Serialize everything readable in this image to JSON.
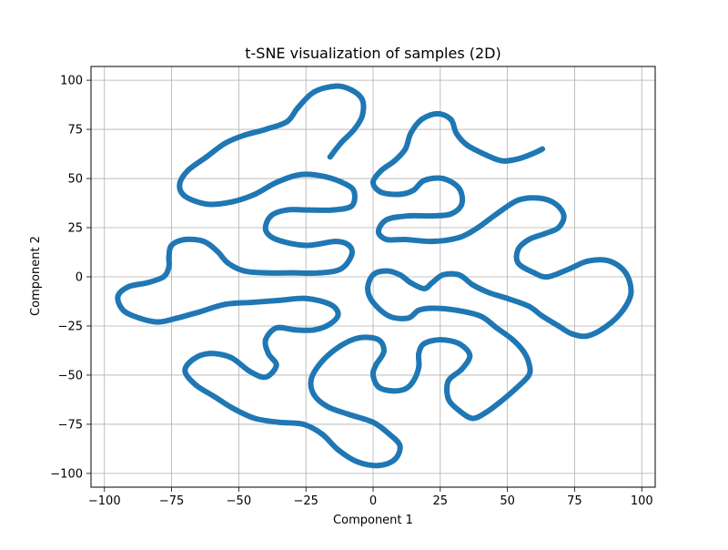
{
  "chart_data": {
    "type": "scatter",
    "title": "t-SNE visualization of samples (2D)",
    "xlabel": "Component 1",
    "ylabel": "Component 2",
    "xlim": [
      -105,
      105
    ],
    "ylim": [
      -107,
      107
    ],
    "xticks": [
      -100,
      -75,
      -50,
      -25,
      0,
      25,
      50,
      75,
      100
    ],
    "yticks": [
      -100,
      -75,
      -50,
      -25,
      0,
      25,
      50,
      75,
      100
    ],
    "xtick_labels": [
      "−100",
      "−75",
      "−50",
      "−25",
      "0",
      "25",
      "50",
      "75",
      "100"
    ],
    "ytick_labels": [
      "−100",
      "−75",
      "−50",
      "−25",
      "0",
      "25",
      "50",
      "75",
      "100"
    ],
    "grid": true,
    "marker_color": "#1f77b4",
    "series": [
      {
        "points": [
          [
            -16,
            61
          ],
          [
            -12,
            68
          ],
          [
            -7,
            75
          ],
          [
            -4,
            82
          ],
          [
            -4,
            90
          ],
          [
            -8,
            95
          ],
          [
            -14,
            97
          ],
          [
            -22,
            94
          ],
          [
            -28,
            86
          ],
          [
            -32,
            79
          ],
          [
            -40,
            75
          ],
          [
            -48,
            72
          ],
          [
            -55,
            68
          ],
          [
            -62,
            61
          ],
          [
            -69,
            54
          ],
          [
            -72,
            47
          ],
          [
            -70,
            41
          ],
          [
            -62,
            37
          ],
          [
            -53,
            38
          ],
          [
            -44,
            42
          ],
          [
            -36,
            48
          ],
          [
            -27,
            52
          ],
          [
            -18,
            51
          ],
          [
            -10,
            47
          ],
          [
            -7,
            43
          ],
          [
            -8,
            36
          ],
          [
            -15,
            34
          ],
          [
            -24,
            34
          ],
          [
            -32,
            34
          ],
          [
            -38,
            31
          ],
          [
            -40,
            24
          ],
          [
            -36,
            19
          ],
          [
            -25,
            16
          ],
          [
            -14,
            18
          ],
          [
            -9,
            16
          ],
          [
            -8,
            11
          ],
          [
            -12,
            4
          ],
          [
            -20,
            2
          ],
          [
            -30,
            2
          ],
          [
            -40,
            2
          ],
          [
            -48,
            3
          ],
          [
            -54,
            7
          ],
          [
            -58,
            13
          ],
          [
            -63,
            18
          ],
          [
            -70,
            19
          ],
          [
            -75,
            16
          ],
          [
            -76,
            10
          ],
          [
            -76,
            5
          ],
          [
            -78,
            0
          ],
          [
            -84,
            -3
          ],
          [
            -91,
            -5
          ],
          [
            -95,
            -10
          ],
          [
            -93,
            -17
          ],
          [
            -87,
            -21
          ],
          [
            -80,
            -23
          ],
          [
            -73,
            -21
          ],
          [
            -65,
            -18
          ],
          [
            -55,
            -14
          ],
          [
            -45,
            -13
          ],
          [
            -35,
            -12
          ],
          [
            -25,
            -11
          ],
          [
            -16,
            -14
          ],
          [
            -13,
            -19
          ],
          [
            -16,
            -24
          ],
          [
            -22,
            -27
          ],
          [
            -29,
            -27
          ],
          [
            -36,
            -26
          ],
          [
            -40,
            -32
          ],
          [
            -39,
            -39
          ],
          [
            -36,
            -45
          ],
          [
            -40,
            -51
          ],
          [
            -46,
            -48
          ],
          [
            -53,
            -41
          ],
          [
            -61,
            -39
          ],
          [
            -67,
            -42
          ],
          [
            -70,
            -48
          ],
          [
            -66,
            -55
          ],
          [
            -59,
            -61
          ],
          [
            -52,
            -67
          ],
          [
            -44,
            -72
          ],
          [
            -35,
            -74
          ],
          [
            -26,
            -75
          ],
          [
            -19,
            -80
          ],
          [
            -13,
            -88
          ],
          [
            -6,
            -94
          ],
          [
            2,
            -96
          ],
          [
            8,
            -93
          ],
          [
            10,
            -86
          ],
          [
            6,
            -80
          ],
          [
            0,
            -74
          ],
          [
            -9,
            -70
          ],
          [
            -17,
            -66
          ],
          [
            -22,
            -60
          ],
          [
            -23,
            -52
          ],
          [
            -19,
            -43
          ],
          [
            -12,
            -35
          ],
          [
            -5,
            -31
          ],
          [
            2,
            -32
          ],
          [
            4,
            -38
          ],
          [
            1,
            -45
          ],
          [
            0,
            -50
          ],
          [
            2,
            -56
          ],
          [
            7,
            -58
          ],
          [
            12,
            -57
          ],
          [
            15,
            -53
          ],
          [
            17,
            -46
          ],
          [
            17,
            -39
          ],
          [
            19,
            -34
          ],
          [
            25,
            -32
          ],
          [
            32,
            -34
          ],
          [
            36,
            -40
          ],
          [
            33,
            -47
          ],
          [
            28,
            -53
          ],
          [
            28,
            -62
          ],
          [
            32,
            -68
          ],
          [
            37,
            -72
          ],
          [
            42,
            -69
          ],
          [
            47,
            -64
          ],
          [
            53,
            -57
          ],
          [
            58,
            -50
          ],
          [
            58,
            -44
          ],
          [
            56,
            -38
          ],
          [
            52,
            -32
          ],
          [
            46,
            -26
          ],
          [
            40,
            -20
          ],
          [
            31,
            -17
          ],
          [
            22,
            -16
          ],
          [
            17,
            -17
          ],
          [
            13,
            -21
          ],
          [
            6,
            -20
          ],
          [
            0,
            -13
          ],
          [
            -2,
            -6
          ],
          [
            0,
            1
          ],
          [
            5,
            3
          ],
          [
            10,
            1
          ],
          [
            14,
            -3
          ],
          [
            19,
            -6
          ],
          [
            22,
            -3
          ],
          [
            26,
            1
          ],
          [
            32,
            1
          ],
          [
            37,
            -4
          ],
          [
            43,
            -8
          ],
          [
            50,
            -11
          ],
          [
            58,
            -15
          ],
          [
            63,
            -20
          ],
          [
            69,
            -25
          ],
          [
            74,
            -29
          ],
          [
            80,
            -30
          ],
          [
            87,
            -25
          ],
          [
            93,
            -17
          ],
          [
            96,
            -8
          ],
          [
            94,
            2
          ],
          [
            88,
            8
          ],
          [
            80,
            8
          ],
          [
            73,
            4
          ],
          [
            65,
            0
          ],
          [
            60,
            2
          ],
          [
            54,
            7
          ],
          [
            54,
            14
          ],
          [
            58,
            19
          ],
          [
            64,
            22
          ],
          [
            69,
            25
          ],
          [
            71,
            31
          ],
          [
            68,
            37
          ],
          [
            62,
            40
          ],
          [
            54,
            39
          ],
          [
            46,
            32
          ],
          [
            39,
            25
          ],
          [
            32,
            20
          ],
          [
            22,
            18
          ],
          [
            12,
            19
          ],
          [
            5,
            19
          ],
          [
            2,
            23
          ],
          [
            5,
            29
          ],
          [
            13,
            31
          ],
          [
            22,
            31
          ],
          [
            29,
            32
          ],
          [
            33,
            37
          ],
          [
            32,
            45
          ],
          [
            26,
            50
          ],
          [
            19,
            49
          ],
          [
            15,
            44
          ],
          [
            10,
            42
          ],
          [
            3,
            43
          ],
          [
            0,
            48
          ],
          [
            3,
            54
          ],
          [
            8,
            59
          ],
          [
            12,
            65
          ],
          [
            14,
            73
          ],
          [
            18,
            80
          ],
          [
            24,
            83
          ],
          [
            29,
            80
          ],
          [
            31,
            73
          ],
          [
            35,
            67
          ],
          [
            42,
            62
          ],
          [
            48,
            59
          ],
          [
            54,
            60
          ],
          [
            60,
            63
          ],
          [
            63,
            65
          ]
        ]
      }
    ]
  }
}
